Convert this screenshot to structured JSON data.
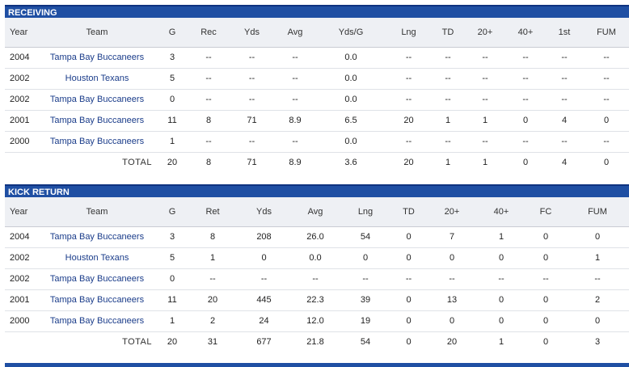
{
  "receiving": {
    "title": "RECEIVING",
    "columns": [
      "Year",
      "Team",
      "G",
      "Rec",
      "Yds",
      "Avg",
      "Yds/G",
      "Lng",
      "TD",
      "20+",
      "40+",
      "1st",
      "FUM"
    ],
    "rows": [
      [
        "2004",
        "Tampa Bay Buccaneers",
        "3",
        "--",
        "--",
        "--",
        "0.0",
        "--",
        "--",
        "--",
        "--",
        "--",
        "--"
      ],
      [
        "2002",
        "Houston Texans",
        "5",
        "--",
        "--",
        "--",
        "0.0",
        "--",
        "--",
        "--",
        "--",
        "--",
        "--"
      ],
      [
        "2002",
        "Tampa Bay Buccaneers",
        "0",
        "--",
        "--",
        "--",
        "0.0",
        "--",
        "--",
        "--",
        "--",
        "--",
        "--"
      ],
      [
        "2001",
        "Tampa Bay Buccaneers",
        "11",
        "8",
        "71",
        "8.9",
        "6.5",
        "20",
        "1",
        "1",
        "0",
        "4",
        "0"
      ],
      [
        "2000",
        "Tampa Bay Buccaneers",
        "1",
        "--",
        "--",
        "--",
        "0.0",
        "--",
        "--",
        "--",
        "--",
        "--",
        "--"
      ]
    ],
    "total": [
      "TOTAL",
      "20",
      "8",
      "71",
      "8.9",
      "3.6",
      "20",
      "1",
      "1",
      "0",
      "4",
      "0"
    ]
  },
  "kick_return": {
    "title": "KICK RETURN",
    "columns": [
      "Year",
      "Team",
      "G",
      "Ret",
      "Yds",
      "Avg",
      "Lng",
      "TD",
      "20+",
      "40+",
      "FC",
      "FUM"
    ],
    "rows": [
      [
        "2004",
        "Tampa Bay Buccaneers",
        "3",
        "8",
        "208",
        "26.0",
        "54",
        "0",
        "7",
        "1",
        "0",
        "0"
      ],
      [
        "2002",
        "Houston Texans",
        "5",
        "1",
        "0",
        "0.0",
        "0",
        "0",
        "0",
        "0",
        "0",
        "1"
      ],
      [
        "2002",
        "Tampa Bay Buccaneers",
        "0",
        "--",
        "--",
        "--",
        "--",
        "--",
        "--",
        "--",
        "--",
        "--"
      ],
      [
        "2001",
        "Tampa Bay Buccaneers",
        "11",
        "20",
        "445",
        "22.3",
        "39",
        "0",
        "13",
        "0",
        "0",
        "2"
      ],
      [
        "2000",
        "Tampa Bay Buccaneers",
        "1",
        "2",
        "24",
        "12.0",
        "19",
        "0",
        "0",
        "0",
        "0",
        "0"
      ]
    ],
    "total": [
      "TOTAL",
      "20",
      "31",
      "677",
      "21.8",
      "54",
      "0",
      "20",
      "1",
      "0",
      "3"
    ]
  },
  "colors": {
    "header_bar": "#1f4fa3",
    "team_link": "#1a3c8a",
    "header_row": "#eef0f4"
  }
}
